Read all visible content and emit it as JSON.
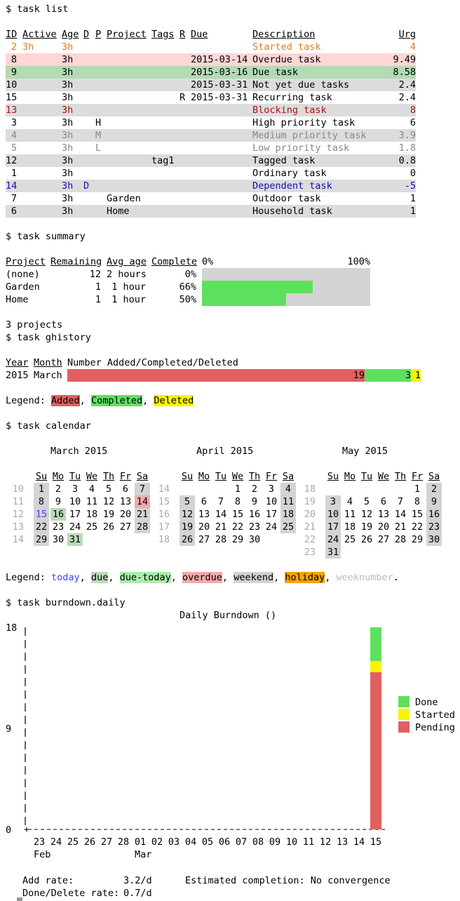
{
  "prompts": {
    "list": "$ task list",
    "summary": "$ task summary",
    "ghistory": "$ task ghistory",
    "calendar": "$ task calendar",
    "burndown": "$ task burndown.daily"
  },
  "task_list": {
    "headers": [
      "ID",
      "Active",
      "Age",
      "D",
      "P",
      "Project",
      "Tags",
      "R",
      "Due",
      "Description",
      "Urg"
    ],
    "rows": [
      {
        "id": "2",
        "active": "3h",
        "age": "3h",
        "d": "",
        "p": "",
        "project": "",
        "tags": "",
        "r": "",
        "due": "",
        "desc": "Started task",
        "urg": "4"
      },
      {
        "id": "8",
        "active": "",
        "age": "3h",
        "d": "",
        "p": "",
        "project": "",
        "tags": "",
        "r": "",
        "due": "2015-03-14",
        "desc": "Overdue task",
        "urg": "9.49"
      },
      {
        "id": "9",
        "active": "",
        "age": "3h",
        "d": "",
        "p": "",
        "project": "",
        "tags": "",
        "r": "",
        "due": "2015-03-16",
        "desc": "Due task",
        "urg": "8.58"
      },
      {
        "id": "10",
        "active": "",
        "age": "3h",
        "d": "",
        "p": "",
        "project": "",
        "tags": "",
        "r": "",
        "due": "2015-03-31",
        "desc": "Not yet due tasks",
        "urg": "2.4"
      },
      {
        "id": "15",
        "active": "",
        "age": "3h",
        "d": "",
        "p": "",
        "project": "",
        "tags": "",
        "r": "R",
        "due": "2015-03-31",
        "desc": "Recurring task",
        "urg": "2.4"
      },
      {
        "id": "13",
        "active": "",
        "age": "3h",
        "d": "",
        "p": "",
        "project": "",
        "tags": "",
        "r": "",
        "due": "",
        "desc": "Blocking task",
        "urg": "8"
      },
      {
        "id": "3",
        "active": "",
        "age": "3h",
        "d": "",
        "p": "H",
        "project": "",
        "tags": "",
        "r": "",
        "due": "",
        "desc": "High priority task",
        "urg": "6"
      },
      {
        "id": "4",
        "active": "",
        "age": "3h",
        "d": "",
        "p": "M",
        "project": "",
        "tags": "",
        "r": "",
        "due": "",
        "desc": "Medium priority task",
        "urg": "3.9"
      },
      {
        "id": "5",
        "active": "",
        "age": "3h",
        "d": "",
        "p": "L",
        "project": "",
        "tags": "",
        "r": "",
        "due": "",
        "desc": "Low priority task",
        "urg": "1.8"
      },
      {
        "id": "12",
        "active": "",
        "age": "3h",
        "d": "",
        "p": "",
        "project": "",
        "tags": "tag1",
        "r": "",
        "due": "",
        "desc": "Tagged task",
        "urg": "0.8"
      },
      {
        "id": "1",
        "active": "",
        "age": "3h",
        "d": "",
        "p": "",
        "project": "",
        "tags": "",
        "r": "",
        "due": "",
        "desc": "Ordinary task",
        "urg": "0"
      },
      {
        "id": "14",
        "active": "",
        "age": "3h",
        "d": "D",
        "p": "",
        "project": "",
        "tags": "",
        "r": "",
        "due": "",
        "desc": "Dependent task",
        "urg": "-5"
      },
      {
        "id": "7",
        "active": "",
        "age": "3h",
        "d": "",
        "p": "",
        "project": "Garden",
        "tags": "",
        "r": "",
        "due": "",
        "desc": "Outdoor task",
        "urg": "1"
      },
      {
        "id": "6",
        "active": "",
        "age": "3h",
        "d": "",
        "p": "",
        "project": "Home",
        "tags": "",
        "r": "",
        "due": "",
        "desc": "Household task",
        "urg": "1"
      }
    ]
  },
  "summary": {
    "headers": [
      "Project",
      "Remaining",
      "Avg age",
      "Complete"
    ],
    "scale_start": "0%",
    "scale_end": "100%",
    "rows": [
      {
        "project": "(none)",
        "remaining": "12",
        "avg_age": "2 hours",
        "complete": "0%",
        "fraction": 0.0
      },
      {
        "project": "Garden",
        "remaining": "1",
        "avg_age": "1 hour",
        "complete": "66%",
        "fraction": 0.66
      },
      {
        "project": "Home",
        "remaining": "1",
        "avg_age": "1 hour",
        "complete": "50%",
        "fraction": 0.5
      }
    ],
    "footer": "3 projects"
  },
  "ghistory": {
    "headers": [
      "Year",
      "Month",
      "Number Added/Completed/Deleted"
    ],
    "row": {
      "year": "2015",
      "month": "March",
      "added": "19",
      "completed": "3",
      "deleted": "1"
    },
    "legend_prefix": "Legend: ",
    "legend": [
      "Added",
      "Completed",
      "Deleted"
    ]
  },
  "calendar": {
    "day_headers": [
      "Su",
      "Mo",
      "Tu",
      "We",
      "Th",
      "Fr",
      "Sa"
    ],
    "months": [
      {
        "title": "March 2015",
        "weeks": [
          {
            "wk": "10",
            "days": [
              "1",
              "2",
              "3",
              "4",
              "5",
              "6",
              "7"
            ]
          },
          {
            "wk": "11",
            "days": [
              "8",
              "9",
              "10",
              "11",
              "12",
              "13",
              "14"
            ]
          },
          {
            "wk": "12",
            "days": [
              "15",
              "16",
              "17",
              "18",
              "19",
              "20",
              "21"
            ]
          },
          {
            "wk": "13",
            "days": [
              "22",
              "23",
              "24",
              "25",
              "26",
              "27",
              "28"
            ]
          },
          {
            "wk": "14",
            "days": [
              "29",
              "30",
              "31",
              "",
              "",
              "",
              ""
            ]
          }
        ]
      },
      {
        "title": "April 2015",
        "weeks": [
          {
            "wk": "14",
            "days": [
              "",
              "",
              "",
              "1",
              "2",
              "3",
              "4"
            ]
          },
          {
            "wk": "15",
            "days": [
              "5",
              "6",
              "7",
              "8",
              "9",
              "10",
              "11"
            ]
          },
          {
            "wk": "16",
            "days": [
              "12",
              "13",
              "14",
              "15",
              "16",
              "17",
              "18"
            ]
          },
          {
            "wk": "17",
            "days": [
              "19",
              "20",
              "21",
              "22",
              "23",
              "24",
              "25"
            ]
          },
          {
            "wk": "18",
            "days": [
              "26",
              "27",
              "28",
              "29",
              "30",
              "",
              ""
            ]
          }
        ]
      },
      {
        "title": "May 2015",
        "weeks": [
          {
            "wk": "18",
            "days": [
              "",
              "",
              "",
              "",
              "",
              "1",
              "2"
            ]
          },
          {
            "wk": "19",
            "days": [
              "3",
              "4",
              "5",
              "6",
              "7",
              "8",
              "9"
            ]
          },
          {
            "wk": "20",
            "days": [
              "10",
              "11",
              "12",
              "13",
              "14",
              "15",
              "16"
            ]
          },
          {
            "wk": "21",
            "days": [
              "17",
              "18",
              "19",
              "20",
              "21",
              "22",
              "23"
            ]
          },
          {
            "wk": "22",
            "days": [
              "24",
              "25",
              "26",
              "27",
              "28",
              "29",
              "30"
            ]
          },
          {
            "wk": "23",
            "days": [
              "31",
              "",
              "",
              "",
              "",
              "",
              ""
            ]
          }
        ]
      }
    ],
    "legend_prefix": "Legend: ",
    "legend": [
      "today",
      "due",
      "due-today",
      "overdue",
      "weekend",
      "holiday",
      "weeknumber"
    ],
    "legend_end": "."
  },
  "burndown": {
    "title": "Daily Burndown ()",
    "footer": {
      "add_rate_label": "Add rate:",
      "add_rate": "3.2/d",
      "done_rate_label": "Done/Delete rate:",
      "done_rate": "0.7/d",
      "estimate": "Estimated completion: No convergence"
    }
  },
  "chart_data": {
    "type": "bar",
    "title": "Daily Burndown ()",
    "categories": [
      "23",
      "24",
      "25",
      "26",
      "27",
      "28",
      "01",
      "02",
      "03",
      "04",
      "05",
      "06",
      "07",
      "08",
      "09",
      "10",
      "11",
      "12",
      "13",
      "14",
      "15"
    ],
    "month_labels": [
      {
        "at": "23",
        "label": "Feb"
      },
      {
        "at": "01",
        "label": "Mar"
      }
    ],
    "y_ticks": [
      "0",
      "9",
      "18"
    ],
    "ylim": [
      0,
      18
    ],
    "stacked": true,
    "series": [
      {
        "name": "Pending",
        "color": "#e06060",
        "values": [
          0,
          0,
          0,
          0,
          0,
          0,
          0,
          0,
          0,
          0,
          0,
          0,
          0,
          0,
          0,
          0,
          0,
          0,
          0,
          0,
          14
        ]
      },
      {
        "name": "Started",
        "color": "#f5f500",
        "values": [
          0,
          0,
          0,
          0,
          0,
          0,
          0,
          0,
          0,
          0,
          0,
          0,
          0,
          0,
          0,
          0,
          0,
          0,
          0,
          0,
          1
        ]
      },
      {
        "name": "Done",
        "color": "#5ee05e",
        "values": [
          0,
          0,
          0,
          0,
          0,
          0,
          0,
          0,
          0,
          0,
          0,
          0,
          0,
          0,
          0,
          0,
          0,
          0,
          0,
          0,
          3
        ]
      }
    ],
    "legend_order": [
      "Done",
      "Started",
      "Pending"
    ]
  },
  "colors": {
    "overdue_row": "#ffd6d6",
    "due_row": "#b3dab3",
    "stripe": "#dcdcdc",
    "added": "#e06060",
    "completed": "#5ee05e",
    "deleted": "#f5f500",
    "summary_track": "#d3d3d3",
    "cal_weekend": "#d3d3d3",
    "cal_due": "#b7dcb7",
    "cal_due_today": "#a8eea8",
    "cal_overdue": "#f2aaaa",
    "holiday": "#f5a300",
    "today": "#4040ff"
  }
}
